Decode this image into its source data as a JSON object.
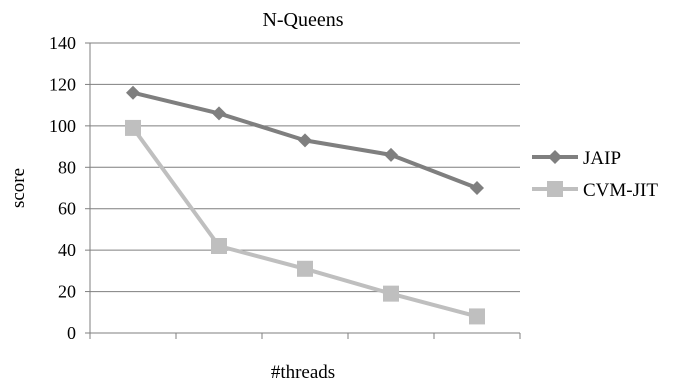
{
  "chart_data": {
    "type": "line",
    "title": "N-Queens",
    "xlabel": "#threads",
    "ylabel": "score",
    "ylim": [
      0,
      140
    ],
    "yticks": [
      0,
      20,
      40,
      60,
      80,
      100,
      120,
      140
    ],
    "grid": true,
    "legend_position": "right",
    "categories": [
      "",
      "",
      "",
      "",
      ""
    ],
    "series": [
      {
        "name": "JAIP",
        "values": [
          116,
          106,
          93,
          86,
          70
        ],
        "color": "#7f7f7f",
        "marker": "diamond"
      },
      {
        "name": "CVM-JIT",
        "values": [
          99,
          42,
          31,
          19,
          8
        ],
        "color": "#bfbfbf",
        "marker": "square"
      }
    ]
  }
}
